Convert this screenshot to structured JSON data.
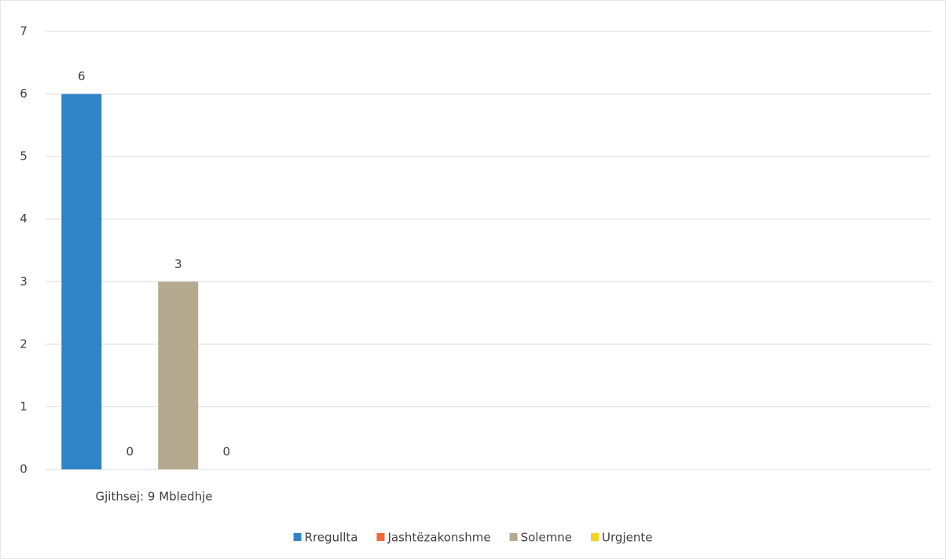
{
  "chart_data": {
    "type": "bar",
    "categories": [
      "Gjithsej: 9 Mbledhje"
    ],
    "series": [
      {
        "name": "Rregullta",
        "color": "#2f84c8",
        "values": [
          6
        ]
      },
      {
        "name": "Jashtëzakonshme",
        "color": "#f06a3c",
        "values": [
          0
        ]
      },
      {
        "name": "Solemne",
        "color": "#b5a98f",
        "values": [
          3
        ]
      },
      {
        "name": "Urgjente",
        "color": "#f5d31a",
        "values": [
          0
        ]
      }
    ],
    "ylim": [
      0,
      7
    ],
    "yticks": [
      0,
      1,
      2,
      3,
      4,
      5,
      6,
      7
    ],
    "grid": true,
    "legend": "bottom"
  }
}
